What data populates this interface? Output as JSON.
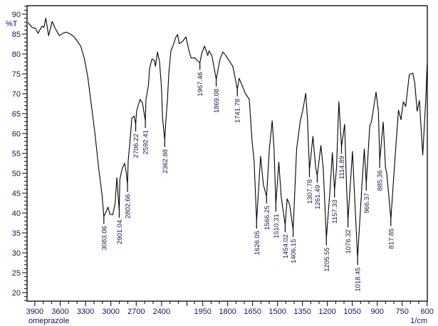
{
  "chart_data": {
    "type": "line",
    "title": "",
    "sample_name": "omeprazole",
    "xlabel": "1/cm",
    "ylabel": "%T",
    "xlim": [
      4000,
      600
    ],
    "x_axis_break": 2000,
    "ylim": [
      18,
      92
    ],
    "grid": false,
    "x_ticks": [
      "3900",
      "3600",
      "3300",
      "3000",
      "2700",
      "2400",
      "1950",
      "1800",
      "1650",
      "1500",
      "1350",
      "1200",
      "1050",
      "900",
      "750",
      "600"
    ],
    "y_ticks": [
      "20",
      "25",
      "30",
      "35",
      "40",
      "45",
      "50",
      "55",
      "60",
      "65",
      "70",
      "75",
      "80",
      "85",
      "90"
    ],
    "series": [
      {
        "name": "omeprazole",
        "color": "#000000",
        "x": [
          3981,
          3933,
          3890,
          3863,
          3815,
          3792,
          3770,
          3736,
          3694,
          3665,
          3610,
          3568,
          3526,
          3469,
          3427,
          3357,
          3315,
          3273,
          3231,
          3188,
          3146,
          3104,
          3083,
          3033,
          3012,
          2978,
          2949,
          2930,
          2901,
          2894,
          2865,
          2837,
          2818,
          2803,
          2795,
          2767,
          2753,
          2725,
          2706,
          2696,
          2654,
          2626,
          2592,
          2584,
          2556,
          2542,
          2514,
          2486,
          2472,
          2449,
          2424,
          2401,
          2388,
          2363,
          2351,
          2331,
          2312,
          2289,
          2261,
          2233,
          2211,
          2191,
          2149,
          2112,
          2079,
          2051,
          1996,
          1984,
          1967,
          1956,
          1939,
          1920,
          1912,
          1895,
          1869,
          1846,
          1829,
          1811,
          1769,
          1742,
          1731,
          1694,
          1670,
          1653,
          1641,
          1626,
          1602,
          1585,
          1566,
          1549,
          1532,
          1521,
          1510,
          1492,
          1478,
          1454,
          1442,
          1427,
          1406,
          1385,
          1363,
          1349,
          1330,
          1320,
          1308,
          1287,
          1270,
          1261,
          1239,
          1225,
          1206,
          1185,
          1170,
          1157,
          1145,
          1131,
          1115,
          1096,
          1085,
          1076,
          1049,
          1018,
          992,
          978,
          966,
          945,
          935,
          907,
          893,
          885,
          864,
          850,
          843,
          818,
          793,
          772,
          757,
          743,
          729,
          707,
          686,
          674,
          660,
          646,
          626,
          607,
          600
        ],
        "y": [
          87.9,
          86.7,
          86.4,
          85.2,
          87.0,
          86.7,
          89.0,
          84.6,
          88.2,
          86.7,
          84.6,
          85.2,
          85.5,
          84.9,
          84.1,
          82.0,
          79.0,
          74.2,
          67.1,
          59.9,
          51.6,
          44.5,
          39.1,
          41.5,
          39.7,
          39.6,
          42.4,
          48.9,
          40.6,
          48.4,
          51.3,
          52.5,
          50.2,
          47.1,
          53.1,
          59.6,
          63.8,
          64.4,
          62.3,
          65.6,
          68.6,
          67.7,
          63.2,
          68.6,
          72.1,
          76.3,
          78.7,
          78.4,
          76.9,
          80.5,
          78.1,
          71.6,
          63.8,
          58.4,
          62.6,
          68.6,
          75.7,
          80.8,
          82.3,
          84.1,
          84.9,
          82.6,
          83.2,
          84.3,
          81.1,
          79.0,
          79.0,
          78.4,
          77.8,
          80.2,
          82.0,
          79.6,
          80.8,
          79.6,
          73.6,
          78.7,
          80.5,
          79.6,
          76.9,
          71.1,
          73.9,
          70.1,
          68.6,
          57.9,
          53.1,
          37.9,
          54.3,
          47.1,
          44.2,
          56.1,
          63.2,
          56.1,
          42.1,
          52.8,
          44.2,
          37.0,
          43.6,
          42.1,
          35.8,
          56.1,
          63.2,
          65.6,
          70.1,
          63.8,
          50.8,
          59.3,
          51.3,
          49.4,
          57.0,
          51.3,
          33.7,
          45.4,
          55.2,
          45.7,
          51.3,
          68.0,
          56.7,
          62.3,
          47.1,
          38.2,
          55.5,
          28.7,
          47.1,
          56.1,
          47.4,
          62.0,
          62.9,
          70.4,
          65.6,
          53.1,
          62.9,
          51.3,
          50.1,
          38.5,
          53.7,
          65.9,
          63.5,
          68.0,
          66.8,
          74.8,
          75.2,
          72.7,
          65.6,
          68.3,
          54.6,
          69.2,
          77.3
        ]
      }
    ],
    "peaks": [
      {
        "label": "3083.06",
        "x": 3083,
        "y": 39.1
      },
      {
        "label": "2901.04",
        "x": 2901,
        "y": 40.6
      },
      {
        "label": "2802.66",
        "x": 2803,
        "y": 47.1
      },
      {
        "label": "2706.22",
        "x": 2706,
        "y": 62.3
      },
      {
        "label": "2592.41",
        "x": 2592,
        "y": 63.2
      },
      {
        "label": "2362.88",
        "x": 2363,
        "y": 58.4
      },
      {
        "label": "1967.46",
        "x": 1967,
        "y": 77.8
      },
      {
        "label": "1869.08",
        "x": 1869,
        "y": 73.6
      },
      {
        "label": "1741.78",
        "x": 1742,
        "y": 71.1
      },
      {
        "label": "1626.05",
        "x": 1626,
        "y": 37.9
      },
      {
        "label": "1566.25",
        "x": 1566,
        "y": 44.2
      },
      {
        "label": "1510.31",
        "x": 1510,
        "y": 42.1
      },
      {
        "label": "1454.02",
        "x": 1454,
        "y": 37.0
      },
      {
        "label": "1406.15",
        "x": 1406,
        "y": 35.8
      },
      {
        "label": "1307.78",
        "x": 1308,
        "y": 50.8
      },
      {
        "label": "1261.49",
        "x": 1261,
        "y": 49.4
      },
      {
        "label": "1205.55",
        "x": 1206,
        "y": 33.7
      },
      {
        "label": "1157.33",
        "x": 1157,
        "y": 45.7
      },
      {
        "label": "1114.89",
        "x": 1115,
        "y": 56.7
      },
      {
        "label": "1076.32",
        "x": 1076,
        "y": 38.2
      },
      {
        "label": "1018.45",
        "x": 1018,
        "y": 28.7
      },
      {
        "label": "966.37",
        "x": 966,
        "y": 47.4
      },
      {
        "label": "885.36",
        "x": 885,
        "y": 53.1
      },
      {
        "label": "817.85",
        "x": 818,
        "y": 38.5
      }
    ]
  }
}
